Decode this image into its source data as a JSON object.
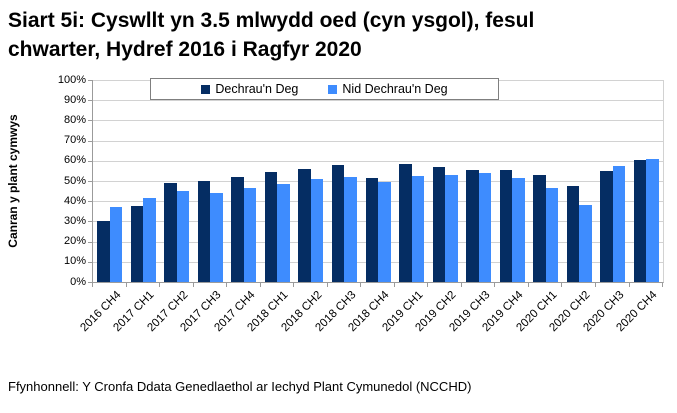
{
  "title": {
    "line1": "Siart 5i: Cyswllt yn 3.5 mlwydd oed (cyn ysgol), fesul",
    "line2": "chwarter, Hydref 2016 i Ragfyr 2020"
  },
  "source": "Ffynhonnell: Y Cronfa Ddata Genedlaethol ar Iechyd Plant Cymunedol (NCCHD)",
  "colors": {
    "series1": "#052d63",
    "series2": "#3e8cfe",
    "gridline": "#d2d2d2",
    "axis": "#9b9b9b"
  },
  "chart_data": {
    "type": "bar",
    "title": "Siart 5i: Cyswllt yn 3.5 mlwydd oed (cyn ysgol), fesul chwarter, Hydref 2016 i Ragfyr 2020",
    "categories": [
      "2016 CH4",
      "2017 CH1",
      "2017 CH2",
      "2017 CH3",
      "2017 CH4",
      "2018 CH1",
      "2018 CH2",
      "2018 CH3",
      "2018 CH4",
      "2019 CH1",
      "2019 CH2",
      "2019 CH3",
      "2019 CH4",
      "2020 CH1",
      "2020 CH2",
      "2020 CH3",
      "2020 CH4"
    ],
    "series": [
      {
        "name": "Dechrau'n Deg",
        "color": "#052d63",
        "values": [
          30,
          37.5,
          49,
          50,
          52,
          54.5,
          56,
          58,
          51.5,
          58.5,
          57,
          55.5,
          55.5,
          53,
          47.5,
          55,
          60.5
        ]
      },
      {
        "name": "Nid Dechrau'n Deg",
        "color": "#3e8cfe",
        "values": [
          37,
          41.5,
          45,
          44,
          46.5,
          48.5,
          51,
          52,
          49.5,
          52.5,
          53,
          54,
          51.5,
          46.5,
          38,
          57.5,
          61
        ]
      }
    ],
    "xlabel": "",
    "ylabel": "Canran y plant cymwys",
    "ylim": [
      0,
      100
    ],
    "ytick_step": 10,
    "ytick_format": "percent",
    "grid": true,
    "legend_position": "top-inside"
  }
}
